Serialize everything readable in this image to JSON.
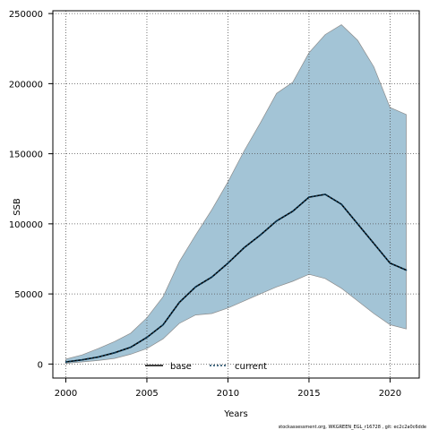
{
  "chart_data": {
    "type": "area",
    "xlabel": "Years",
    "ylabel": "SSB",
    "xlim": [
      1999.2,
      2021.8
    ],
    "ylim": [
      -10000,
      252000
    ],
    "xticks": [
      2000,
      2005,
      2010,
      2015,
      2020
    ],
    "yticks": [
      0,
      50000,
      100000,
      150000,
      200000,
      250000
    ],
    "grid": true,
    "legend_position": "bottom-center",
    "legend": [
      {
        "label": "base",
        "style": "solid",
        "color": "#000000"
      },
      {
        "label": "current",
        "style": "dotted",
        "color": "#0b3d5c"
      }
    ],
    "x": [
      2000,
      2001,
      2002,
      2003,
      2004,
      2005,
      2006,
      2007,
      2008,
      2009,
      2010,
      2011,
      2012,
      2013,
      2014,
      2015,
      2016,
      2017,
      2018,
      2019,
      2020,
      2021
    ],
    "series": [
      {
        "name": "current",
        "band_color": "#a3c4d6",
        "band_edge_color": "#8c8c8c",
        "line_color": "#0b3d5c",
        "values": [
          1500,
          3000,
          5000,
          8000,
          12000,
          19000,
          28000,
          44000,
          55000,
          62000,
          72000,
          83000,
          92000,
          102000,
          109000,
          119000,
          121000,
          114000,
          100000,
          86000,
          72000,
          67000
        ],
        "lower": [
          500,
          1500,
          2500,
          4000,
          7000,
          11000,
          18000,
          29000,
          35000,
          36000,
          40000,
          45000,
          50000,
          55000,
          59000,
          64000,
          61000,
          54000,
          45000,
          36000,
          28000,
          25000
        ],
        "upper": [
          3500,
          6500,
          11000,
          16000,
          22000,
          33000,
          48000,
          73000,
          92000,
          110000,
          130000,
          152000,
          172000,
          193000,
          201000,
          222000,
          235000,
          242000,
          231000,
          212000,
          183000,
          178000
        ]
      }
    ]
  },
  "footer": "stockassessment.org,  WKGREEN_EGL_r16728 ,  git:  ec2c2a0c6dde"
}
